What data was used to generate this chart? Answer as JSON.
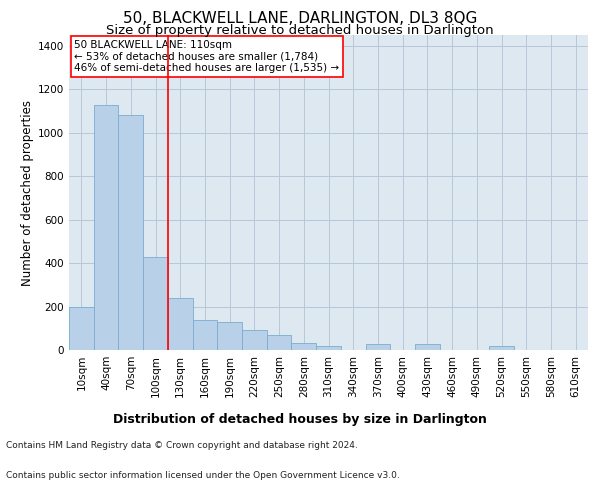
{
  "title": "50, BLACKWELL LANE, DARLINGTON, DL3 8QG",
  "subtitle": "Size of property relative to detached houses in Darlington",
  "xlabel": "Distribution of detached houses by size in Darlington",
  "ylabel": "Number of detached properties",
  "bar_color": "#b8d0e8",
  "bar_edge_color": "#7aadcf",
  "background_color": "#dde8f0",
  "categories": [
    "10sqm",
    "40sqm",
    "70sqm",
    "100sqm",
    "130sqm",
    "160sqm",
    "190sqm",
    "220sqm",
    "250sqm",
    "280sqm",
    "310sqm",
    "340sqm",
    "370sqm",
    "400sqm",
    "430sqm",
    "460sqm",
    "490sqm",
    "520sqm",
    "550sqm",
    "580sqm",
    "610sqm"
  ],
  "values": [
    200,
    1130,
    1080,
    430,
    240,
    140,
    130,
    90,
    70,
    30,
    20,
    0,
    28,
    0,
    28,
    0,
    0,
    18,
    0,
    0,
    0
  ],
  "ylim": [
    0,
    1450
  ],
  "yticks": [
    0,
    200,
    400,
    600,
    800,
    1000,
    1200,
    1400
  ],
  "property_line_x": 3.5,
  "annotation_text": "50 BLACKWELL LANE: 110sqm\n← 53% of detached houses are smaller (1,784)\n46% of semi-detached houses are larger (1,535) →",
  "footer_line1": "Contains HM Land Registry data © Crown copyright and database right 2024.",
  "footer_line2": "Contains public sector information licensed under the Open Government Licence v3.0.",
  "grid_color": "#b8c8d8",
  "title_fontsize": 11,
  "subtitle_fontsize": 9.5,
  "tick_label_fontsize": 7.5,
  "ylabel_fontsize": 8.5,
  "xlabel_fontsize": 9,
  "annotation_fontsize": 7.5
}
